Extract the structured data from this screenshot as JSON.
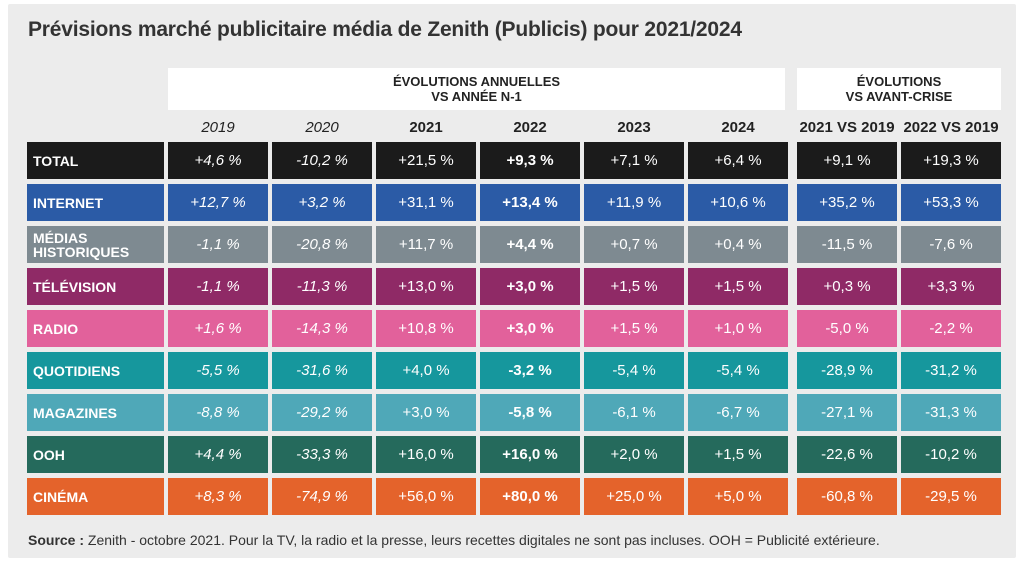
{
  "title": "Prévisions marché publicitaire média de Zenith (Publicis) pour 2021/2024",
  "chart_data": {
    "type": "table",
    "group_headers": [
      {
        "label": "ÉVOLUTIONS ANNUELLES\nVS ANNÉE N-1"
      },
      {
        "label": "ÉVOLUTIONS\nVS AVANT-CRISE"
      }
    ],
    "columns": [
      "2019",
      "2020",
      "2021",
      "2022",
      "2023",
      "2024",
      "2021 VS 2019",
      "2022 VS 2019"
    ],
    "rows": [
      {
        "label": "TOTAL",
        "color": "#1b1b1b",
        "values": [
          "+4,6 %",
          "-10,2 %",
          "+21,5 %",
          "+9,3 %",
          "+7,1 %",
          "+6,4 %",
          "+9,1 %",
          "+19,3 %"
        ]
      },
      {
        "label": "INTERNET",
        "color": "#2b5ba6",
        "values": [
          "+12,7 %",
          "+3,2 %",
          "+31,1 %",
          "+13,4 %",
          "+11,9 %",
          "+10,6 %",
          "+35,2 %",
          "+53,3 %"
        ]
      },
      {
        "label": "MÉDIAS\nHISTORIQUES",
        "color": "#7e8a91",
        "values": [
          "-1,1 %",
          "-20,8 %",
          "+11,7 %",
          "+4,4 %",
          "+0,7 %",
          "+0,4 %",
          "-11,5 %",
          "-7,6 %"
        ]
      },
      {
        "label": "TÉLÉVISION",
        "color": "#8f2a66",
        "values": [
          "-1,1 %",
          "-11,3 %",
          "+13,0 %",
          "+3,0 %",
          "+1,5 %",
          "+1,5 %",
          "+0,3 %",
          "+3,3 %"
        ]
      },
      {
        "label": "RADIO",
        "color": "#e2619b",
        "values": [
          "+1,6 %",
          "-14,3 %",
          "+10,8 %",
          "+3,0 %",
          "+1,5 %",
          "+1,0 %",
          "-5,0 %",
          "-2,2 %"
        ]
      },
      {
        "label": "QUOTIDIENS",
        "color": "#16979d",
        "values": [
          "-5,5 %",
          "-31,6 %",
          "+4,0 %",
          "-3,2 %",
          "-5,4 %",
          "-5,4 %",
          "-28,9 %",
          "-31,2 %"
        ]
      },
      {
        "label": "MAGAZINES",
        "color": "#4fa8b8",
        "values": [
          "-8,8 %",
          "-29,2 %",
          "+3,0 %",
          "-5,8 %",
          "-6,1 %",
          "-6,7 %",
          "-27,1 %",
          "-31,3 %"
        ]
      },
      {
        "label": "OOH",
        "color": "#256a5c",
        "values": [
          "+4,4 %",
          "-33,3 %",
          "+16,0 %",
          "+16,0 %",
          "+2,0 %",
          "+1,5 %",
          "-22,6 %",
          "-10,2 %"
        ]
      },
      {
        "label": "CINÉMA",
        "color": "#e4632b",
        "values": [
          "+8,3 %",
          "-74,9 %",
          "+56,0 %",
          "+80,0 %",
          "+25,0 %",
          "+5,0 %",
          "-60,8 %",
          "-29,5 %"
        ]
      }
    ]
  },
  "source": {
    "prefix": "Source :",
    "text": " Zenith - octobre 2021. Pour la TV, la radio et la presse, leurs recettes digitales ne sont pas incluses. OOH = Publicité extérieure."
  }
}
